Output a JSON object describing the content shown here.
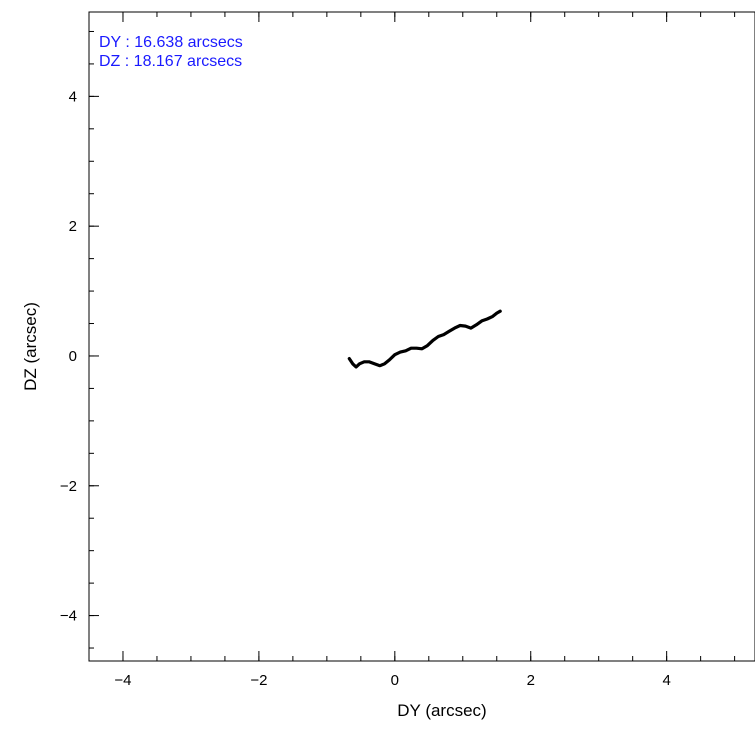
{
  "chart_data": {
    "type": "line",
    "xlabel": "DY (arcsec)",
    "ylabel": "DZ (arcsec)",
    "xlim": [
      -4.5,
      5.3
    ],
    "ylim": [
      -4.7,
      5.3
    ],
    "x_ticks": [
      {
        "value": -4,
        "label": "−4"
      },
      {
        "value": -2,
        "label": "−2"
      },
      {
        "value": 0,
        "label": "0"
      },
      {
        "value": 2,
        "label": "2"
      },
      {
        "value": 4,
        "label": "4"
      }
    ],
    "y_ticks": [
      {
        "value": -4,
        "label": "−4"
      },
      {
        "value": -2,
        "label": "−2"
      },
      {
        "value": 0,
        "label": "0"
      },
      {
        "value": 2,
        "label": "2"
      },
      {
        "value": 4,
        "label": "4"
      }
    ],
    "minor_step": 0.5,
    "grid": false,
    "series": [
      {
        "color": "#000000",
        "points": [
          [
            -0.67,
            -0.04
          ],
          [
            -0.62,
            -0.12
          ],
          [
            -0.57,
            -0.17
          ],
          [
            -0.52,
            -0.12
          ],
          [
            -0.45,
            -0.09
          ],
          [
            -0.38,
            -0.09
          ],
          [
            -0.3,
            -0.12
          ],
          [
            -0.22,
            -0.15
          ],
          [
            -0.15,
            -0.12
          ],
          [
            -0.08,
            -0.06
          ],
          [
            0.0,
            0.02
          ],
          [
            0.08,
            0.06
          ],
          [
            0.16,
            0.08
          ],
          [
            0.24,
            0.12
          ],
          [
            0.32,
            0.12
          ],
          [
            0.4,
            0.11
          ],
          [
            0.48,
            0.16
          ],
          [
            0.56,
            0.24
          ],
          [
            0.64,
            0.3
          ],
          [
            0.72,
            0.33
          ],
          [
            0.8,
            0.38
          ],
          [
            0.88,
            0.43
          ],
          [
            0.96,
            0.47
          ],
          [
            1.04,
            0.46
          ],
          [
            1.12,
            0.43
          ],
          [
            1.2,
            0.48
          ],
          [
            1.28,
            0.54
          ],
          [
            1.36,
            0.57
          ],
          [
            1.44,
            0.61
          ],
          [
            1.5,
            0.66
          ],
          [
            1.55,
            0.69
          ]
        ]
      }
    ],
    "annotations": [
      {
        "text": "DY : 16.638 arcsecs",
        "color": "#1a1aff"
      },
      {
        "text": "DZ : 18.167 arcsecs",
        "color": "#1a1aff"
      }
    ]
  }
}
